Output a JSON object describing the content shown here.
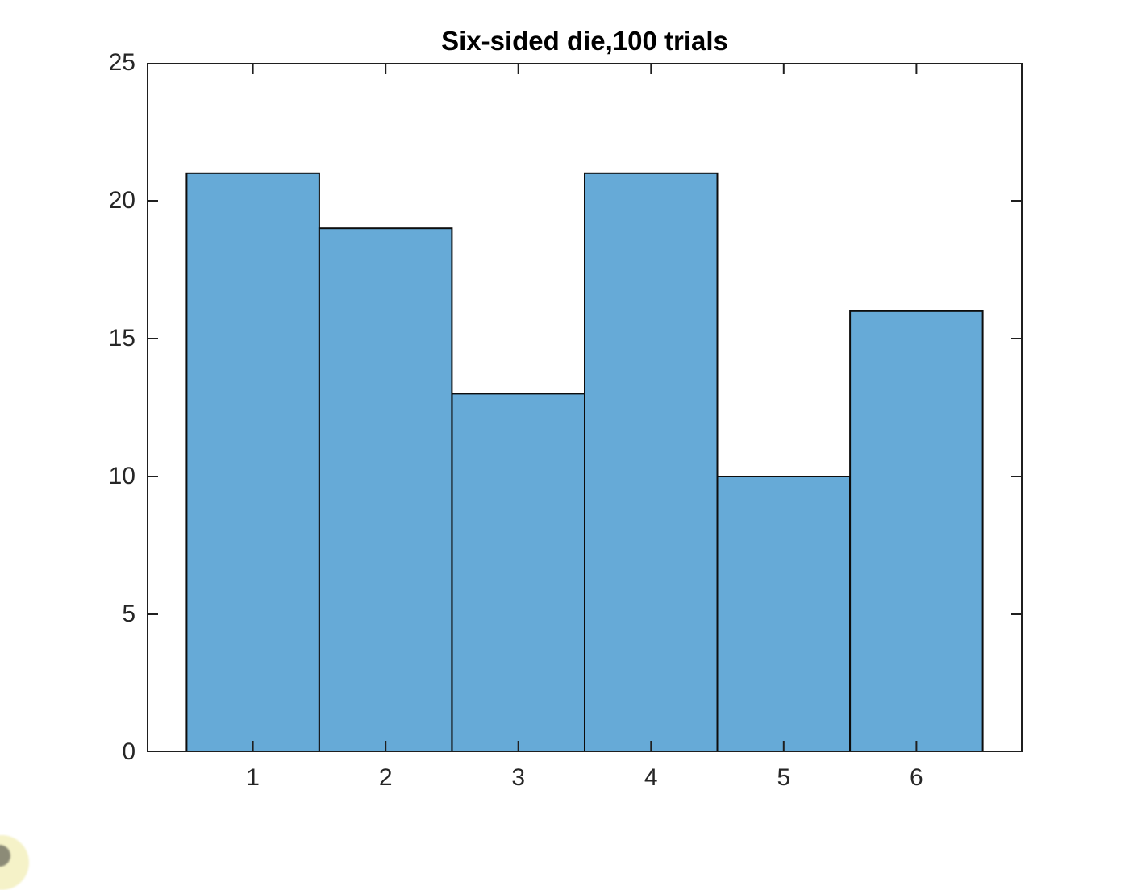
{
  "chart_data": {
    "type": "bar",
    "subtype": "histogram",
    "title": "Six-sided die,100 trials",
    "categories": [
      1,
      2,
      3,
      4,
      5,
      6
    ],
    "values": [
      21,
      19,
      13,
      21,
      10,
      16
    ],
    "total_trials": 100,
    "xlabel": "",
    "ylabel": "",
    "xlim": [
      0.2,
      6.8
    ],
    "ylim": [
      0,
      25
    ],
    "x_ticks": [
      1,
      2,
      3,
      4,
      5,
      6
    ],
    "x_tick_labels": [
      "1",
      "2",
      "3",
      "4",
      "5",
      "6"
    ],
    "y_ticks": [
      0,
      5,
      10,
      15,
      20,
      25
    ],
    "y_tick_labels": [
      "0",
      "5",
      "10",
      "15",
      "20",
      "25"
    ],
    "bin_width": 1,
    "bar_fill_color": "#66AAD7",
    "bar_edge_color": "#0d0d0d",
    "axis_color": "#1f1f1f",
    "tick_label_color": "#262626",
    "tick_direction": "in",
    "box_on": true,
    "grid": false,
    "legend": "none",
    "background_color": "#ffffff"
  },
  "corner_artifact": {
    "outer_color": "#F5F2C8",
    "inner_color": "#8C8B77"
  }
}
